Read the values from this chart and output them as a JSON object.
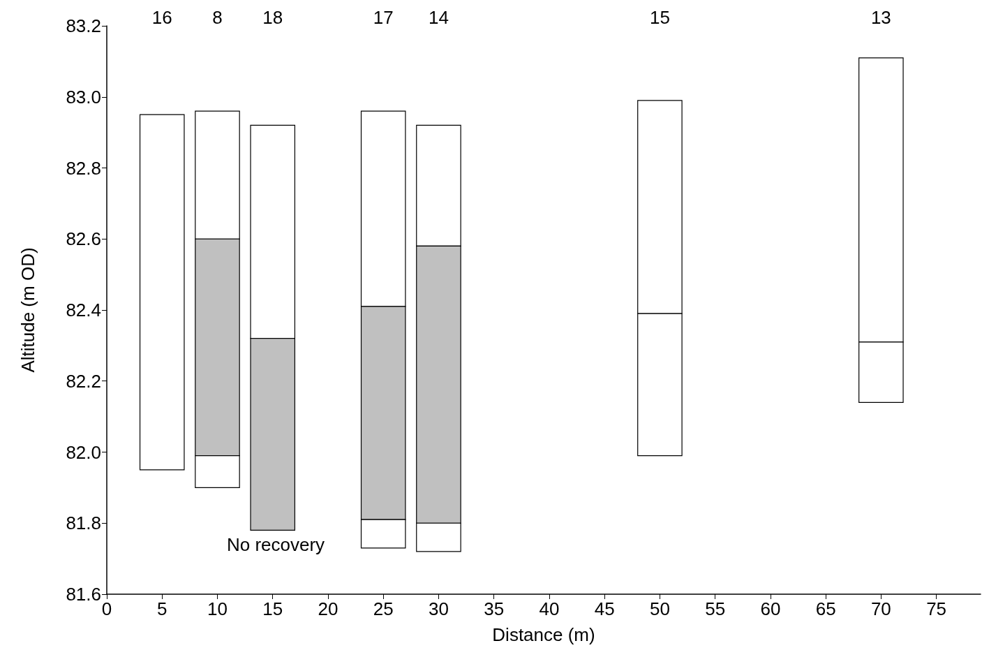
{
  "chart_data": {
    "type": "bar",
    "xlabel": "Distance (m)",
    "ylabel": "Altitude (m OD)",
    "xlim": [
      0,
      79
    ],
    "xticks": [
      0,
      5,
      10,
      15,
      20,
      25,
      30,
      35,
      40,
      45,
      50,
      55,
      60,
      65,
      70,
      75
    ],
    "ylim": [
      81.6,
      83.2
    ],
    "yticks": [
      81.6,
      81.8,
      {
        "value": 82,
        "label": "82.0"
      },
      82.2,
      82.4,
      82.6,
      82.8,
      {
        "value": 83,
        "label": "83.0"
      },
      83.2
    ],
    "grid": false,
    "series": [
      {
        "color": "#ffffff",
        "x": [
          5,
          10,
          15,
          25,
          30,
          50,
          70
        ],
        "base": [
          81.95,
          82.6,
          82.32,
          82.41,
          82.58,
          82.39,
          82.31
        ],
        "values": [
          1.0,
          0.36,
          0.6,
          0.55,
          0.34,
          0.6,
          0.8
        ]
      },
      {
        "color": "#c0c0c0",
        "x": [
          10,
          15,
          25,
          30
        ],
        "base": [
          81.99,
          81.78,
          81.81,
          81.8
        ],
        "values": [
          0.61,
          0.54,
          0.6,
          0.78
        ]
      },
      {
        "color": "#ffffff",
        "x": [
          10,
          25,
          30,
          50,
          70
        ],
        "base": [
          81.9,
          81.73,
          81.72,
          81.99,
          82.14
        ],
        "values": [
          0.09,
          0.08,
          0.08,
          0.4,
          0.17
        ]
      }
    ],
    "annotations": [
      "16",
      "8",
      "18",
      "17",
      "14",
      "15",
      "13",
      "No recovery"
    ]
  }
}
